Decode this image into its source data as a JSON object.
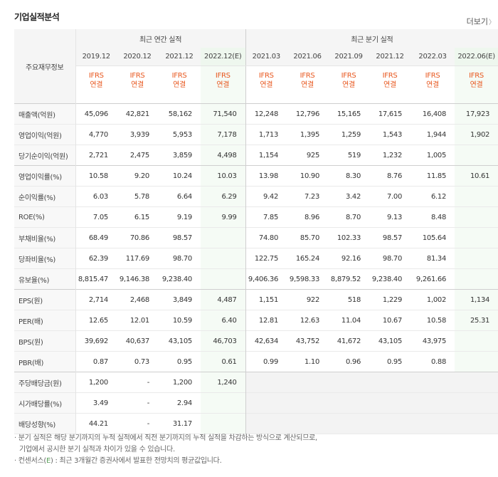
{
  "title": "기업실적분석",
  "more_label": "더보기",
  "more_arrow": "〉",
  "row_header": "주요재무정보",
  "annual_header": "최근 연간 실적",
  "quarter_header": "최근 분기 실적",
  "ifrs_line1": "IFRS",
  "ifrs_line2": "연결",
  "columns": [
    "2019.12",
    "2020.12",
    "2021.12",
    "2022.12(E)",
    "2021.03",
    "2021.06",
    "2021.09",
    "2021.12",
    "2022.03",
    "2022.06(E)"
  ],
  "rows": [
    {
      "label": "매출액(억원)",
      "values": [
        "45,096",
        "42,821",
        "58,162",
        "71,540",
        "12,248",
        "12,796",
        "15,165",
        "17,615",
        "16,408",
        "17,923"
      ]
    },
    {
      "label": "영업이익(억원)",
      "values": [
        "4,770",
        "3,939",
        "5,953",
        "7,178",
        "1,713",
        "1,395",
        "1,259",
        "1,543",
        "1,944",
        "1,902"
      ]
    },
    {
      "label": "당기순이익(억원)",
      "values": [
        "2,721",
        "2,475",
        "3,859",
        "4,498",
        "1,154",
        "925",
        "519",
        "1,232",
        "1,005",
        ""
      ]
    },
    {
      "label": "영업이익률(%)",
      "values": [
        "10.58",
        "9.20",
        "10.24",
        "10.03",
        "13.98",
        "10.90",
        "8.30",
        "8.76",
        "11.85",
        "10.61"
      ]
    },
    {
      "label": "순이익률(%)",
      "values": [
        "6.03",
        "5.78",
        "6.64",
        "6.29",
        "9.42",
        "7.23",
        "3.42",
        "7.00",
        "6.12",
        ""
      ]
    },
    {
      "label": "ROE(%)",
      "values": [
        "7.05",
        "6.15",
        "9.19",
        "9.99",
        "7.85",
        "8.96",
        "8.70",
        "9.13",
        "8.48",
        ""
      ]
    },
    {
      "label": "부채비율(%)",
      "values": [
        "68.49",
        "70.86",
        "98.57",
        "",
        "74.80",
        "85.70",
        "102.33",
        "98.57",
        "105.64",
        ""
      ]
    },
    {
      "label": "당좌비율(%)",
      "values": [
        "62.39",
        "117.69",
        "98.70",
        "",
        "122.75",
        "165.24",
        "92.16",
        "98.70",
        "81.34",
        ""
      ]
    },
    {
      "label": "유보율(%)",
      "values": [
        "8,815.47",
        "9,146.38",
        "9,238.40",
        "",
        "9,406.36",
        "9,598.33",
        "8,879.52",
        "9,238.40",
        "9,261.66",
        ""
      ]
    },
    {
      "label": "EPS(원)",
      "values": [
        "2,714",
        "2,468",
        "3,849",
        "4,487",
        "1,151",
        "922",
        "518",
        "1,229",
        "1,002",
        "1,134"
      ]
    },
    {
      "label": "PER(배)",
      "values": [
        "12.65",
        "12.01",
        "10.59",
        "6.40",
        "12.81",
        "12.63",
        "11.04",
        "10.67",
        "10.58",
        "25.31"
      ]
    },
    {
      "label": "BPS(원)",
      "values": [
        "39,692",
        "40,637",
        "43,105",
        "46,703",
        "42,634",
        "43,752",
        "41,672",
        "43,105",
        "43,975",
        ""
      ]
    },
    {
      "label": "PBR(배)",
      "values": [
        "0.87",
        "0.73",
        "0.95",
        "0.61",
        "0.99",
        "1.10",
        "0.96",
        "0.95",
        "0.88",
        ""
      ]
    },
    {
      "label": "주당배당금(원)",
      "values": [
        "1,200",
        "-",
        "1,200",
        "1,240",
        "",
        "",
        "",
        "",
        "",
        ""
      ]
    },
    {
      "label": "시가배당률(%)",
      "values": [
        "3.49",
        "-",
        "2.94",
        "",
        "",
        "",
        "",
        "",
        "",
        ""
      ]
    },
    {
      "label": "배당성향(%)",
      "values": [
        "44.21",
        "-",
        "31.17",
        "",
        "",
        "",
        "",
        "",
        "",
        ""
      ]
    }
  ],
  "notes": {
    "line1": "분기 실적은 해당 분기까지의 누적 실적에서 직전 분기까지의 누적 실적을 차감하는 방식으로 계산되므로,",
    "line2": "기업에서 공시한 분기 실적과 차이가 있을 수 있습니다.",
    "line3_prefix": "컨센서스(",
    "line3_e": "E",
    "line3_suffix": ") : 최근 3개월간 증권사에서 발표한 전망치의 평균값입니다."
  }
}
